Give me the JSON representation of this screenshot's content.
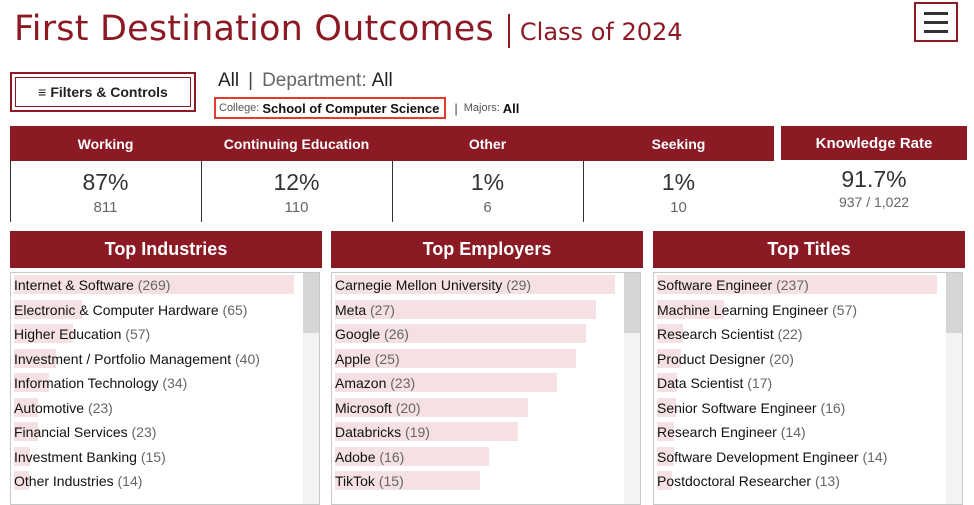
{
  "header": {
    "title": "First Destination Outcomes",
    "subtitle": "Class of 2024"
  },
  "menu_icon": "hamburger-menu-icon",
  "filters_button": {
    "icon": "≡",
    "label": "Filters & Controls"
  },
  "breadcrumb": {
    "all_label": "All",
    "department_label": "Department:",
    "department_value": "All",
    "college_label": "College:",
    "college_value": "School of Computer Science",
    "majors_label": "Majors:",
    "majors_value": "All"
  },
  "stats": [
    {
      "label": "Working",
      "percent": "87%",
      "count": "811"
    },
    {
      "label": "Continuing Education",
      "percent": "12%",
      "count": "110"
    },
    {
      "label": "Other",
      "percent": "1%",
      "count": "6"
    },
    {
      "label": "Seeking",
      "percent": "1%",
      "count": "10"
    }
  ],
  "knowledge_rate": {
    "label": "Knowledge Rate",
    "value": "91.7%",
    "detail": "937 / 1,022"
  },
  "colors": {
    "accent": "#8c1a24",
    "bar": "#f5e1e3",
    "highlight": "#e23a2e"
  },
  "panels": [
    {
      "title": "Top Industries",
      "max": 269,
      "items": [
        {
          "name": "Internet & Software",
          "count": "(269)",
          "value": 269
        },
        {
          "name": "Electronic & Computer Hardware",
          "count": "(65)",
          "value": 65
        },
        {
          "name": "Higher Education",
          "count": "(57)",
          "value": 57
        },
        {
          "name": "Investment / Portfolio Management",
          "count": "(40)",
          "value": 40
        },
        {
          "name": "Information Technology",
          "count": "(34)",
          "value": 34
        },
        {
          "name": "Automotive",
          "count": "(23)",
          "value": 23
        },
        {
          "name": "Financial Services",
          "count": "(23)",
          "value": 23
        },
        {
          "name": "Investment Banking",
          "count": "(15)",
          "value": 15
        },
        {
          "name": "Other Industries",
          "count": "(14)",
          "value": 14
        }
      ]
    },
    {
      "title": "Top Employers",
      "max": 29,
      "items": [
        {
          "name": "Carnegie Mellon University",
          "count": "(29)",
          "value": 29
        },
        {
          "name": "Meta",
          "count": "(27)",
          "value": 27
        },
        {
          "name": "Google",
          "count": "(26)",
          "value": 26
        },
        {
          "name": "Apple",
          "count": "(25)",
          "value": 25
        },
        {
          "name": "Amazon",
          "count": "(23)",
          "value": 23
        },
        {
          "name": "Microsoft",
          "count": "(20)",
          "value": 20
        },
        {
          "name": "Databricks",
          "count": "(19)",
          "value": 19
        },
        {
          "name": "Adobe",
          "count": "(16)",
          "value": 16
        },
        {
          "name": "TikTok",
          "count": "(15)",
          "value": 15
        }
      ]
    },
    {
      "title": "Top Titles",
      "max": 237,
      "items": [
        {
          "name": "Software Engineer",
          "count": "(237)",
          "value": 237
        },
        {
          "name": "Machine Learning Engineer",
          "count": "(57)",
          "value": 57
        },
        {
          "name": "Research Scientist",
          "count": "(22)",
          "value": 22
        },
        {
          "name": "Product Designer",
          "count": "(20)",
          "value": 20
        },
        {
          "name": "Data Scientist",
          "count": "(17)",
          "value": 17
        },
        {
          "name": "Senior Software Engineer",
          "count": "(16)",
          "value": 16
        },
        {
          "name": "Research Engineer",
          "count": "(14)",
          "value": 14
        },
        {
          "name": "Software Development Engineer",
          "count": "(14)",
          "value": 14
        },
        {
          "name": "Postdoctoral Researcher",
          "count": "(13)",
          "value": 13
        }
      ]
    }
  ]
}
